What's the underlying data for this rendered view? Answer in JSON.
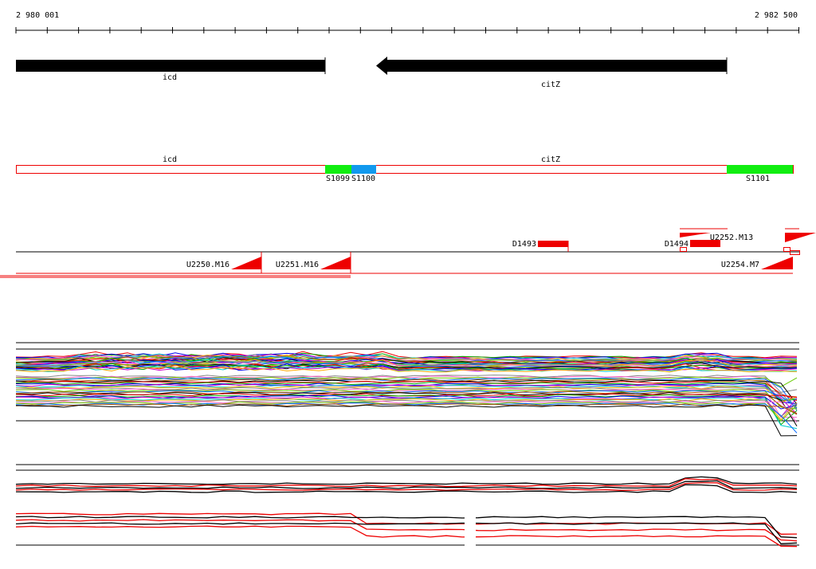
{
  "ruler": {
    "start": "2 980 001",
    "end": "2 982 500"
  },
  "genes": [
    {
      "label": "icd"
    },
    {
      "label": "citZ"
    }
  ],
  "segments": {
    "genes": [
      "icd",
      "citZ"
    ],
    "labels": [
      "S1099",
      "S1100",
      "S1101"
    ]
  },
  "features": [
    "D1493",
    "D1494",
    "U2252.M13",
    "U2250.M16",
    "U2251.M16",
    "U2254.M7"
  ]
}
